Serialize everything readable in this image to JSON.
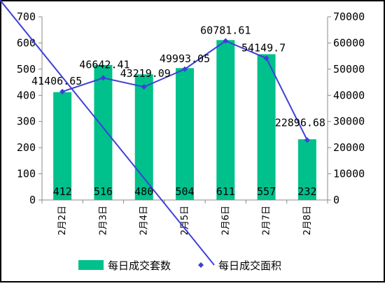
{
  "chart_data": {
    "type": "bar",
    "categories": [
      "2月2日",
      "2月3日",
      "2月4日",
      "2月5日",
      "2月6日",
      "2月7日",
      "2月8日"
    ],
    "series": [
      {
        "name": "每日成交套数",
        "type": "bar",
        "axis": "left",
        "color": "#00c08b",
        "values": [
          412,
          516,
          480,
          504,
          611,
          557,
          232
        ],
        "labels": [
          "412",
          "516",
          "480",
          "504",
          "611",
          "557",
          "232"
        ]
      },
      {
        "name": "每日成交面积",
        "type": "line",
        "axis": "right",
        "color": "#3f3fd8",
        "values": [
          41406.65,
          46642.41,
          43219.09,
          49993.05,
          60781.61,
          54149.7,
          22896.68
        ],
        "labels": [
          "41406.65",
          "46642.41",
          "43219.09",
          "49993.05",
          "60781.61",
          "54149.7",
          "22896.68"
        ]
      }
    ],
    "ylim_left": [
      0,
      700
    ],
    "yticks_left": [
      "0",
      "100",
      "200",
      "300",
      "400",
      "500",
      "600",
      "700"
    ],
    "ylim_right": [
      0,
      70000
    ],
    "yticks_right": [
      "0",
      "10000",
      "20000",
      "30000",
      "40000",
      "50000",
      "60000",
      "70000"
    ],
    "legend_position": "bottom",
    "grid": false
  }
}
